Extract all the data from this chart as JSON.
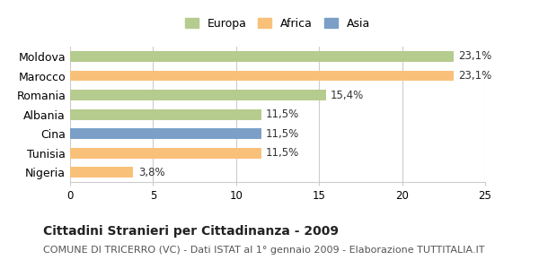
{
  "categories": [
    "Moldova",
    "Marocco",
    "Romania",
    "Albania",
    "Cina",
    "Tunisia",
    "Nigeria"
  ],
  "values": [
    23.1,
    23.1,
    15.4,
    11.5,
    11.5,
    11.5,
    3.8
  ],
  "labels": [
    "23,1%",
    "23,1%",
    "15,4%",
    "11,5%",
    "11,5%",
    "11,5%",
    "3,8%"
  ],
  "colors": [
    "#b5cc8e",
    "#f9c07a",
    "#b5cc8e",
    "#b5cc8e",
    "#7b9fc7",
    "#f9c07a",
    "#f9c07a"
  ],
  "legend": [
    {
      "label": "Europa",
      "color": "#b5cc8e"
    },
    {
      "label": "Africa",
      "color": "#f9c07a"
    },
    {
      "label": "Asia",
      "color": "#7b9fc7"
    }
  ],
  "xlim": [
    0,
    25
  ],
  "xticks": [
    0,
    5,
    10,
    15,
    20,
    25
  ],
  "title": "Cittadini Stranieri per Cittadinanza - 2009",
  "subtitle": "COMUNE DI TRICERRO (VC) - Dati ISTAT al 1° gennaio 2009 - Elaborazione TUTTITALIA.IT",
  "background_color": "#ffffff",
  "grid_color": "#cccccc",
  "bar_height": 0.55,
  "label_fontsize": 8.5,
  "title_fontsize": 10,
  "subtitle_fontsize": 8
}
